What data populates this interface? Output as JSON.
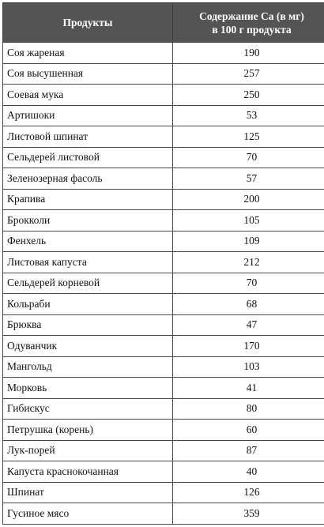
{
  "table": {
    "headers": {
      "product": "Продукты",
      "calcium_line1": "Содержание Са (в мг)",
      "calcium_line2": "в 100 г продукта"
    },
    "rows": [
      {
        "product": "Соя жареная",
        "calcium": "190"
      },
      {
        "product": "Соя высушенная",
        "calcium": "257"
      },
      {
        "product": "Соевая мука",
        "calcium": "250"
      },
      {
        "product": "Артишоки",
        "calcium": "53"
      },
      {
        "product": "Листовой шпинат",
        "calcium": "125"
      },
      {
        "product": "Сельдерей листовой",
        "calcium": "70"
      },
      {
        "product": "Зеленозерная фасоль",
        "calcium": "57"
      },
      {
        "product": "Крапива",
        "calcium": "200"
      },
      {
        "product": "Брокколи",
        "calcium": "105"
      },
      {
        "product": "Фенхель",
        "calcium": "109"
      },
      {
        "product": "Листовая капуста",
        "calcium": "212"
      },
      {
        "product": "Сельдерей корневой",
        "calcium": "70"
      },
      {
        "product": "Кольраби",
        "calcium": "68"
      },
      {
        "product": "Брюква",
        "calcium": "47"
      },
      {
        "product": "Одуванчик",
        "calcium": "170"
      },
      {
        "product": "Мангольд",
        "calcium": "103"
      },
      {
        "product": "Морковь",
        "calcium": "41"
      },
      {
        "product": "Гибискус",
        "calcium": "80"
      },
      {
        "product": "Петрушка (корень)",
        "calcium": "60"
      },
      {
        "product": "Лук-порей",
        "calcium": "87"
      },
      {
        "product": "Капуста краснокочанная",
        "calcium": "40"
      },
      {
        "product": "Шпинат",
        "calcium": "126"
      },
      {
        "product": "Гусиное мясо",
        "calcium": "359"
      }
    ]
  }
}
